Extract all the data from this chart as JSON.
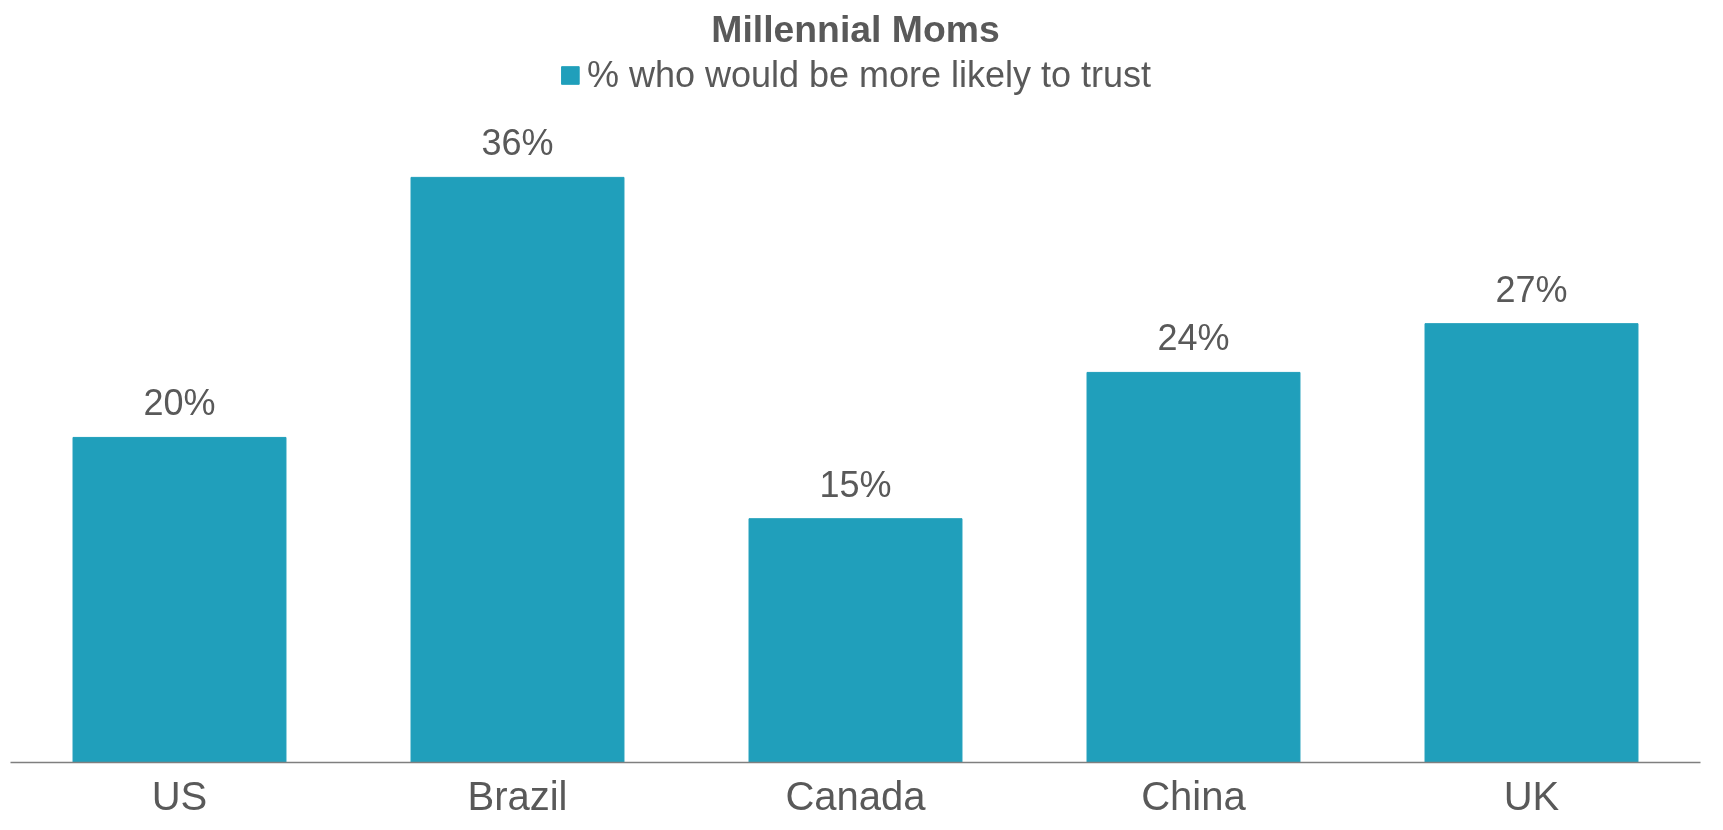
{
  "chart_data": {
    "type": "bar",
    "title": "Millennial Moms",
    "categories": [
      "US",
      "Brazil",
      "Canada",
      "China",
      "UK"
    ],
    "series": [
      {
        "name": "% who would be more likely to trust",
        "color": "#209fbb",
        "values": [
          20,
          36,
          15,
          24,
          27
        ],
        "value_labels": [
          "20%",
          "36%",
          "15%",
          "24%",
          "27%"
        ]
      }
    ],
    "legend": "top",
    "grid": false,
    "tick_labels": "x"
  }
}
